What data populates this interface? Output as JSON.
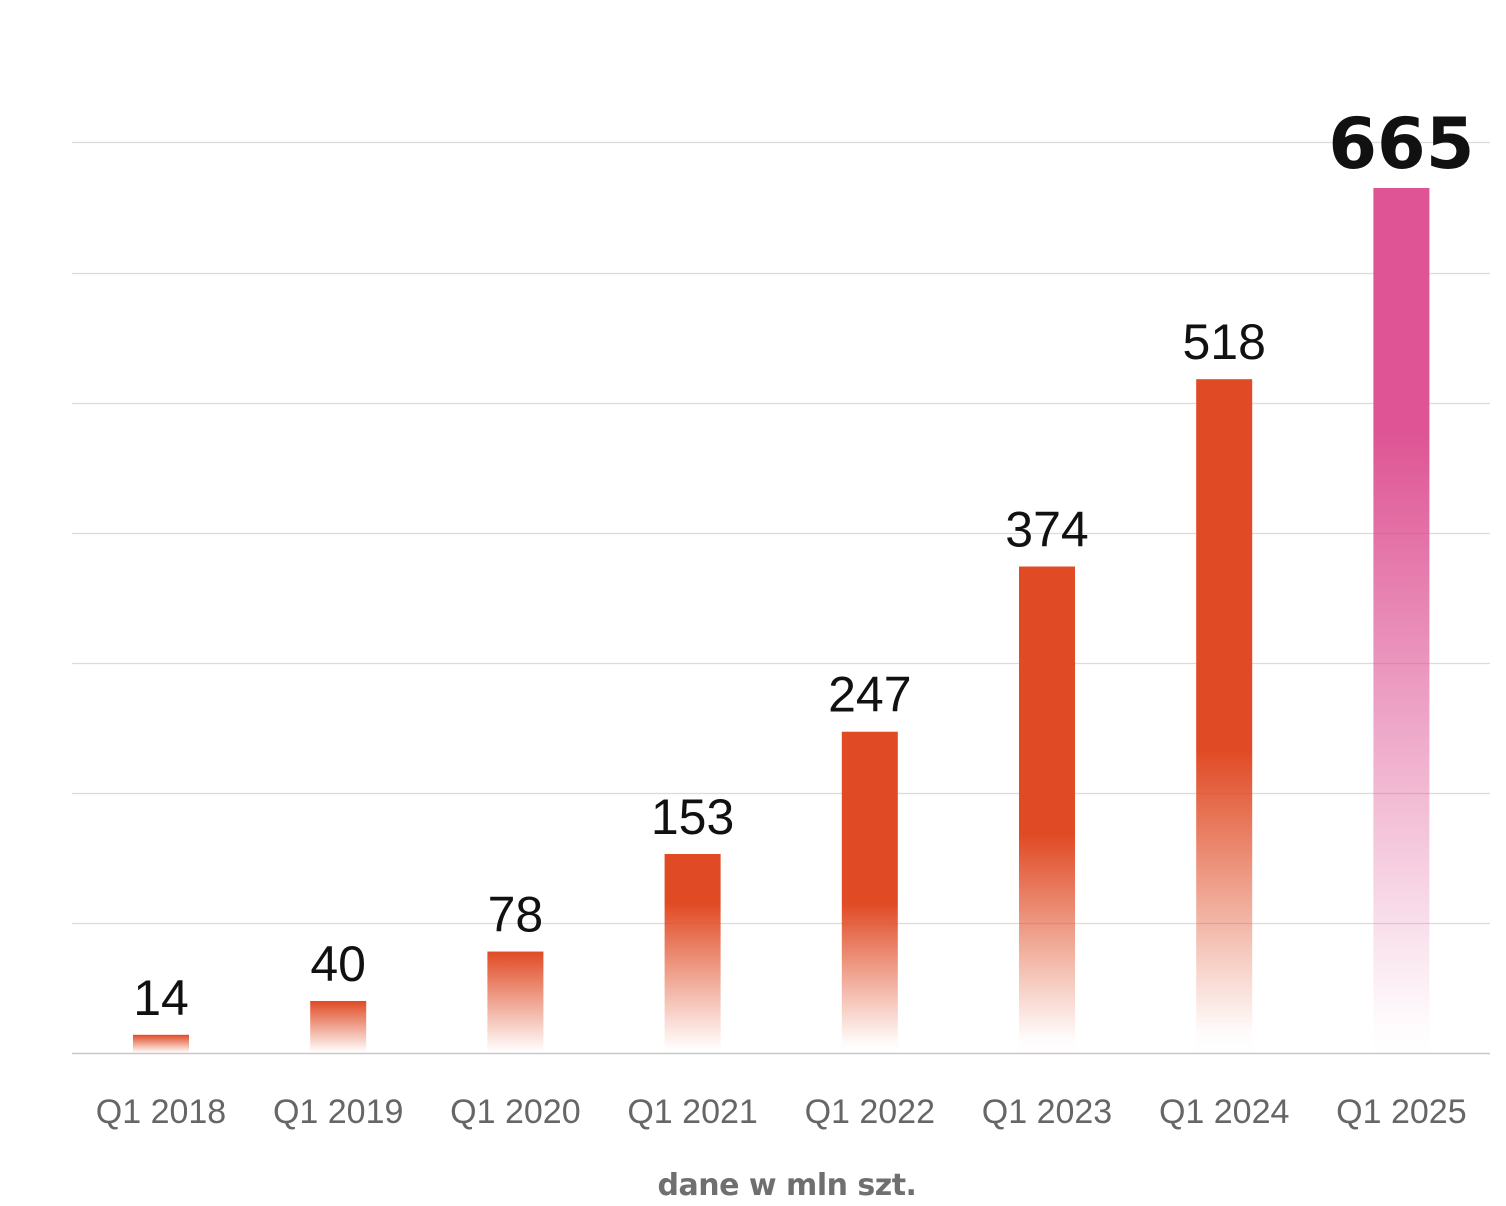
{
  "chart_data": {
    "type": "bar",
    "categories": [
      "Q1 2018",
      "Q1 2019",
      "Q1 2020",
      "Q1 2021",
      "Q1 2022",
      "Q1 2023",
      "Q1 2024",
      "Q1 2025"
    ],
    "values": [
      14,
      40,
      78,
      153,
      247,
      374,
      518,
      665
    ],
    "data_labels": [
      "14",
      "40",
      "78",
      "153",
      "247",
      "374",
      "518",
      "665"
    ],
    "highlight_index": 7,
    "caption": "dane w mln szt.",
    "ylim": [
      0,
      700
    ],
    "grid": true,
    "legend": "none",
    "colors": {
      "bar": "#e04a24",
      "highlight": "#de5494",
      "grid": "#dcdcdc",
      "axis": "#c8c8c8",
      "tick_label": "#666666",
      "data_label": "#111111",
      "caption": "#6f6f6f"
    }
  }
}
